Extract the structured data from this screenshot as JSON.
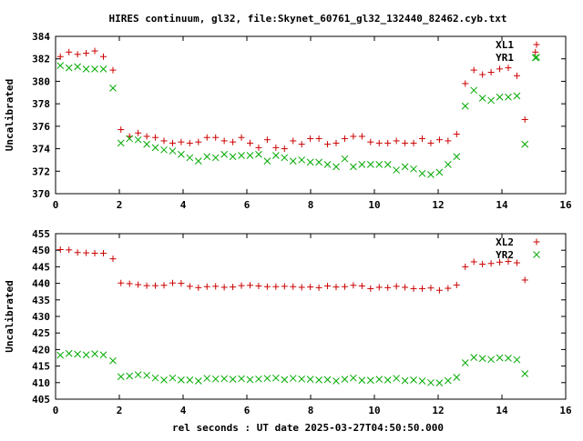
{
  "title": "HIRES continuum, gl32, file:Skynet_60761_gl32_132440_82462.cyb.txt",
  "xlabel": "rel seconds : UT date 2025-03-27T04:50:50.000",
  "colors": {
    "red_series": "#cc0000",
    "green_series": "#00aa00",
    "axes": "#000000"
  },
  "chart_data": [
    {
      "type": "scatter",
      "ylabel": "Uncalibrated",
      "xlim": [
        0,
        16
      ],
      "ylim": [
        370,
        384
      ],
      "xticks": [
        0,
        2,
        4,
        6,
        8,
        10,
        12,
        14,
        16
      ],
      "yticks": [
        370,
        372,
        374,
        376,
        378,
        380,
        382,
        384
      ],
      "grid": false,
      "legend": "top-right",
      "series": [
        {
          "name": "XL1",
          "marker": "plus",
          "color": "#cc0000",
          "x": [
            0.15,
            0.42,
            0.69,
            0.96,
            1.23,
            1.5,
            1.8,
            2.05,
            2.32,
            2.59,
            2.86,
            3.13,
            3.4,
            3.67,
            3.94,
            4.21,
            4.48,
            4.75,
            5.02,
            5.29,
            5.56,
            5.83,
            6.1,
            6.37,
            6.64,
            6.91,
            7.18,
            7.45,
            7.72,
            7.99,
            8.26,
            8.53,
            8.8,
            9.07,
            9.34,
            9.61,
            9.88,
            10.15,
            10.42,
            10.69,
            10.96,
            11.23,
            11.5,
            11.77,
            12.04,
            12.31,
            12.58,
            12.85,
            13.12,
            13.39,
            13.66,
            13.93,
            14.2,
            14.47,
            14.72,
            15.05
          ],
          "y": [
            382.2,
            382.6,
            382.4,
            382.5,
            382.7,
            382.2,
            381.0,
            375.7,
            375.1,
            375.4,
            375.1,
            375.0,
            374.7,
            374.5,
            374.6,
            374.5,
            374.6,
            375.0,
            375.0,
            374.7,
            374.6,
            375.0,
            374.5,
            374.1,
            374.8,
            374.1,
            374.0,
            374.7,
            374.4,
            374.9,
            374.9,
            374.4,
            374.5,
            374.9,
            375.1,
            375.1,
            374.6,
            374.5,
            374.5,
            374.7,
            374.5,
            374.5,
            374.9,
            374.5,
            374.8,
            374.7,
            375.3,
            379.8,
            381.0,
            380.6,
            380.8,
            381.1,
            381.2,
            380.5,
            376.6,
            382.6
          ]
        },
        {
          "name": "YR1",
          "marker": "cross",
          "color": "#00aa00",
          "x": [
            0.15,
            0.42,
            0.69,
            0.96,
            1.23,
            1.5,
            1.8,
            2.05,
            2.32,
            2.59,
            2.86,
            3.13,
            3.4,
            3.67,
            3.94,
            4.21,
            4.48,
            4.75,
            5.02,
            5.29,
            5.56,
            5.83,
            6.1,
            6.37,
            6.64,
            6.91,
            7.18,
            7.45,
            7.72,
            7.99,
            8.26,
            8.53,
            8.8,
            9.07,
            9.34,
            9.61,
            9.88,
            10.15,
            10.42,
            10.69,
            10.96,
            11.23,
            11.5,
            11.77,
            12.04,
            12.31,
            12.58,
            12.85,
            13.12,
            13.39,
            13.66,
            13.93,
            14.2,
            14.47,
            14.72,
            15.05
          ],
          "y": [
            381.4,
            381.2,
            381.3,
            381.1,
            381.1,
            381.1,
            379.4,
            374.5,
            374.9,
            374.8,
            374.4,
            374.1,
            373.9,
            373.8,
            373.5,
            373.2,
            372.9,
            373.3,
            373.2,
            373.5,
            373.3,
            373.4,
            373.4,
            373.5,
            372.9,
            373.4,
            373.2,
            372.9,
            373.0,
            372.8,
            372.8,
            372.6,
            372.4,
            373.1,
            372.4,
            372.6,
            372.6,
            372.6,
            372.6,
            372.1,
            372.4,
            372.2,
            371.8,
            371.7,
            371.9,
            372.6,
            373.3,
            377.8,
            379.2,
            378.5,
            378.3,
            378.6,
            378.6,
            378.7,
            374.4,
            382.1
          ]
        }
      ]
    },
    {
      "type": "scatter",
      "ylabel": "Uncalibrated",
      "xlim": [
        0,
        16
      ],
      "ylim": [
        405,
        455
      ],
      "xticks": [
        0,
        2,
        4,
        6,
        8,
        10,
        12,
        14,
        16
      ],
      "yticks": [
        405,
        410,
        415,
        420,
        425,
        430,
        435,
        440,
        445,
        450,
        455
      ],
      "grid": false,
      "legend": "top-right",
      "series": [
        {
          "name": "XL2",
          "marker": "plus",
          "color": "#cc0000",
          "x": [
            0.15,
            0.42,
            0.69,
            0.96,
            1.23,
            1.5,
            1.8,
            2.05,
            2.32,
            2.59,
            2.86,
            3.13,
            3.4,
            3.67,
            3.94,
            4.21,
            4.48,
            4.75,
            5.02,
            5.29,
            5.56,
            5.83,
            6.1,
            6.37,
            6.64,
            6.91,
            7.18,
            7.45,
            7.72,
            7.99,
            8.26,
            8.53,
            8.8,
            9.07,
            9.34,
            9.61,
            9.88,
            10.15,
            10.42,
            10.69,
            10.96,
            11.23,
            11.5,
            11.77,
            12.04,
            12.31,
            12.58,
            12.85,
            13.12,
            13.39,
            13.66,
            13.93,
            14.2,
            14.47,
            14.72
          ],
          "y": [
            450.2,
            450.1,
            449.3,
            449.2,
            449.1,
            449.1,
            447.4,
            440.1,
            439.9,
            439.6,
            439.3,
            439.3,
            439.4,
            440.1,
            440.0,
            439.1,
            438.7,
            439.0,
            439.1,
            438.8,
            438.9,
            439.3,
            439.4,
            439.2,
            439.0,
            439.0,
            439.1,
            439.0,
            438.8,
            438.9,
            438.7,
            439.2,
            438.9,
            439.0,
            439.4,
            439.2,
            438.4,
            438.8,
            438.7,
            439.1,
            438.8,
            438.4,
            438.4,
            438.6,
            437.9,
            438.5,
            439.5,
            445.0,
            446.5,
            445.8,
            446.0,
            446.4,
            446.6,
            446.2,
            441.0
          ]
        },
        {
          "name": "YR2",
          "marker": "cross",
          "color": "#00aa00",
          "x": [
            0.15,
            0.42,
            0.69,
            0.96,
            1.23,
            1.5,
            1.8,
            2.05,
            2.32,
            2.59,
            2.86,
            3.13,
            3.4,
            3.67,
            3.94,
            4.21,
            4.48,
            4.75,
            5.02,
            5.29,
            5.56,
            5.83,
            6.1,
            6.37,
            6.64,
            6.91,
            7.18,
            7.45,
            7.72,
            7.99,
            8.26,
            8.53,
            8.8,
            9.07,
            9.34,
            9.61,
            9.88,
            10.15,
            10.42,
            10.69,
            10.96,
            11.23,
            11.5,
            11.77,
            12.04,
            12.31,
            12.58,
            12.85,
            13.12,
            13.39,
            13.66,
            13.93,
            14.2,
            14.47,
            14.72
          ],
          "y": [
            418.3,
            418.8,
            418.6,
            418.4,
            418.7,
            418.4,
            416.6,
            411.8,
            412.0,
            412.4,
            412.2,
            411.4,
            410.8,
            411.4,
            410.8,
            410.8,
            410.5,
            411.3,
            411.1,
            411.2,
            411.0,
            411.2,
            410.9,
            411.1,
            411.3,
            411.4,
            410.9,
            411.3,
            411.1,
            411.0,
            410.8,
            410.9,
            410.5,
            411.0,
            411.4,
            410.7,
            410.7,
            411.0,
            410.8,
            411.3,
            410.6,
            410.8,
            410.5,
            410.0,
            409.9,
            410.6,
            411.6,
            416.0,
            417.6,
            417.3,
            417.0,
            417.5,
            417.4,
            416.9,
            412.7
          ]
        }
      ]
    }
  ]
}
